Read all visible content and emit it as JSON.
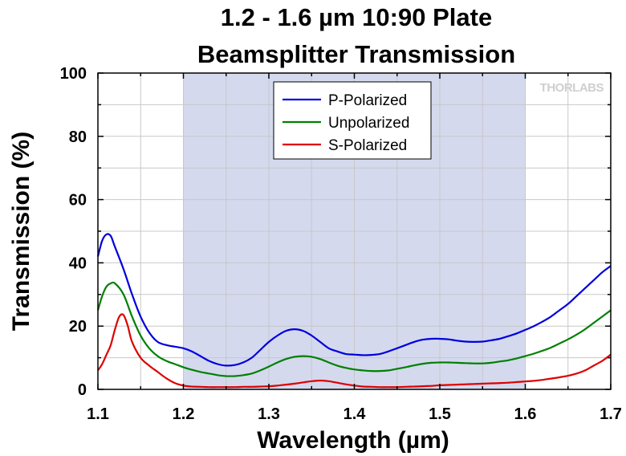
{
  "chart_data": {
    "type": "line",
    "title_lines": [
      "1.2 - 1.6 µm 10:90 Plate",
      "Beamsplitter Transmission"
    ],
    "xlabel": "Wavelength (µm)",
    "ylabel": "Transmission (%)",
    "xlim": [
      1.1,
      1.7
    ],
    "ylim": [
      0,
      100
    ],
    "x_ticks": [
      "1.1",
      "1.2",
      "1.3",
      "1.4",
      "1.5",
      "1.6",
      "1.7"
    ],
    "y_ticks": [
      "0",
      "20",
      "40",
      "60",
      "80",
      "100"
    ],
    "grid": true,
    "shaded_band": [
      1.2,
      1.6
    ],
    "shaded_color": "#d4d9ee",
    "legend_position": "top-center",
    "watermark": "THORLABS",
    "series": [
      {
        "name": "P-Polarized",
        "color": "#0000dd",
        "x": [
          1.1,
          1.105,
          1.11,
          1.115,
          1.12,
          1.13,
          1.14,
          1.15,
          1.16,
          1.17,
          1.18,
          1.19,
          1.2,
          1.21,
          1.22,
          1.23,
          1.24,
          1.25,
          1.26,
          1.27,
          1.28,
          1.29,
          1.3,
          1.31,
          1.32,
          1.33,
          1.34,
          1.35,
          1.36,
          1.37,
          1.38,
          1.39,
          1.4,
          1.41,
          1.42,
          1.43,
          1.44,
          1.45,
          1.46,
          1.47,
          1.48,
          1.49,
          1.5,
          1.51,
          1.52,
          1.53,
          1.54,
          1.55,
          1.56,
          1.57,
          1.58,
          1.59,
          1.6,
          1.61,
          1.62,
          1.63,
          1.64,
          1.65,
          1.66,
          1.67,
          1.68,
          1.69,
          1.7
        ],
        "y": [
          42,
          47,
          49,
          48.5,
          45,
          38,
          30,
          23,
          18,
          15,
          14,
          13.5,
          13,
          12,
          10.5,
          9,
          8,
          7.5,
          7.7,
          8.5,
          10,
          12.5,
          15,
          17,
          18.5,
          19,
          18.5,
          17,
          15,
          13,
          12,
          11.2,
          11,
          10.8,
          10.9,
          11.2,
          12,
          13,
          14,
          15,
          15.7,
          16,
          16,
          15.8,
          15.4,
          15.1,
          15,
          15.1,
          15.5,
          16,
          16.8,
          17.7,
          18.8,
          20,
          21.4,
          23,
          25,
          27,
          29.5,
          32,
          34.5,
          37,
          39
        ]
      },
      {
        "name": "Unpolarized",
        "color": "#008000",
        "x": [
          1.1,
          1.105,
          1.11,
          1.115,
          1.12,
          1.13,
          1.14,
          1.15,
          1.16,
          1.17,
          1.18,
          1.19,
          1.2,
          1.21,
          1.22,
          1.23,
          1.24,
          1.25,
          1.26,
          1.27,
          1.28,
          1.29,
          1.3,
          1.31,
          1.32,
          1.33,
          1.34,
          1.35,
          1.36,
          1.37,
          1.38,
          1.39,
          1.4,
          1.41,
          1.42,
          1.43,
          1.44,
          1.45,
          1.46,
          1.47,
          1.48,
          1.49,
          1.5,
          1.51,
          1.52,
          1.53,
          1.54,
          1.55,
          1.56,
          1.57,
          1.58,
          1.59,
          1.6,
          1.61,
          1.62,
          1.63,
          1.64,
          1.65,
          1.66,
          1.67,
          1.68,
          1.69,
          1.7
        ],
        "y": [
          25,
          29.5,
          32.5,
          33.5,
          33.5,
          30,
          23,
          17,
          13,
          10.5,
          9,
          8,
          7,
          6.2,
          5.5,
          5,
          4.5,
          4.2,
          4.2,
          4.5,
          5,
          6,
          7.2,
          8.5,
          9.6,
          10.3,
          10.5,
          10.3,
          9.6,
          8.5,
          7.5,
          6.8,
          6.3,
          6,
          5.8,
          5.8,
          6,
          6.5,
          7,
          7.6,
          8.1,
          8.4,
          8.5,
          8.5,
          8.4,
          8.3,
          8.2,
          8.2,
          8.4,
          8.8,
          9.2,
          9.8,
          10.5,
          11.3,
          12.2,
          13.2,
          14.5,
          15.8,
          17.3,
          19,
          21,
          23,
          25
        ]
      },
      {
        "name": "S-Polarized",
        "color": "#dd0000",
        "x": [
          1.1,
          1.105,
          1.11,
          1.115,
          1.12,
          1.125,
          1.13,
          1.135,
          1.14,
          1.15,
          1.16,
          1.17,
          1.18,
          1.19,
          1.2,
          1.21,
          1.22,
          1.23,
          1.24,
          1.25,
          1.26,
          1.27,
          1.28,
          1.29,
          1.3,
          1.31,
          1.32,
          1.33,
          1.34,
          1.35,
          1.36,
          1.37,
          1.38,
          1.39,
          1.4,
          1.41,
          1.42,
          1.43,
          1.44,
          1.45,
          1.46,
          1.47,
          1.48,
          1.49,
          1.5,
          1.51,
          1.52,
          1.53,
          1.54,
          1.55,
          1.56,
          1.57,
          1.58,
          1.59,
          1.6,
          1.61,
          1.62,
          1.63,
          1.64,
          1.65,
          1.66,
          1.67,
          1.68,
          1.69,
          1.7
        ],
        "y": [
          6,
          8,
          11,
          14,
          19,
          23,
          23.5,
          20,
          15,
          10,
          7.5,
          5.5,
          3.5,
          2,
          1.2,
          0.9,
          0.8,
          0.7,
          0.7,
          0.7,
          0.7,
          0.8,
          0.8,
          0.9,
          1,
          1.2,
          1.5,
          1.8,
          2.2,
          2.6,
          2.8,
          2.6,
          2.1,
          1.6,
          1.2,
          0.9,
          0.8,
          0.7,
          0.7,
          0.7,
          0.8,
          0.9,
          1,
          1.1,
          1.3,
          1.4,
          1.5,
          1.6,
          1.7,
          1.8,
          1.9,
          2,
          2.1,
          2.3,
          2.5,
          2.7,
          3,
          3.4,
          3.8,
          4.3,
          5,
          6,
          7.5,
          9,
          11
        ]
      }
    ]
  }
}
